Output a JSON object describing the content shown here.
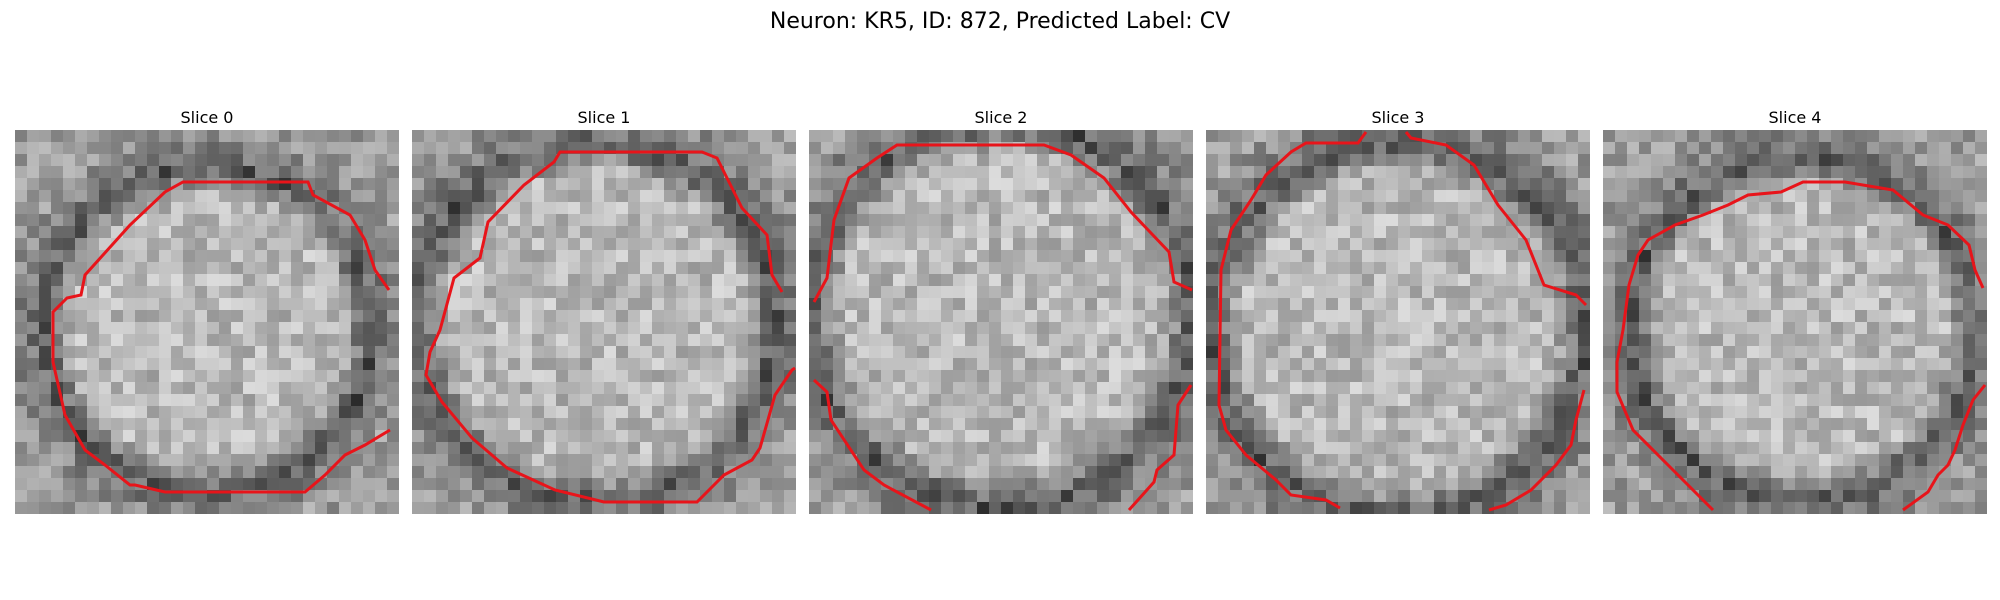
{
  "figure": {
    "title": "Neuron: KR5, ID: 872, Predicted Label: CV"
  },
  "slices": [
    {
      "title": "Slice 0"
    },
    {
      "title": "Slice 1"
    },
    {
      "title": "Slice 2"
    },
    {
      "title": "Slice 3"
    },
    {
      "title": "Slice 4"
    }
  ],
  "colors": {
    "contour": "#e8141a",
    "background": "#ffffff"
  }
}
